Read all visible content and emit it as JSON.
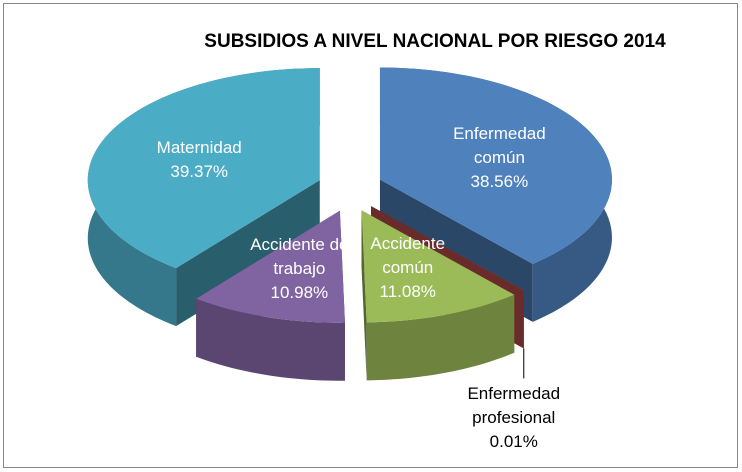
{
  "chart_data": {
    "type": "pie3d",
    "title": "SUBSIDIOS A NIVEL NACIONAL POR RIESGO 2014",
    "categories": [
      "Enfermedad común",
      "Enfermedad profesional",
      "Accidente común",
      "Accidente de trabajo",
      "Maternidad"
    ],
    "values": [
      38.56,
      0.01,
      11.08,
      10.98,
      39.37
    ],
    "value_labels": [
      "38.56%",
      "0.01%",
      "11.08%",
      "10.98%",
      "39.37%"
    ],
    "colors": [
      "#4f81bd",
      "#c0504d",
      "#9bbb59",
      "#8064a2",
      "#4bacc6"
    ]
  }
}
